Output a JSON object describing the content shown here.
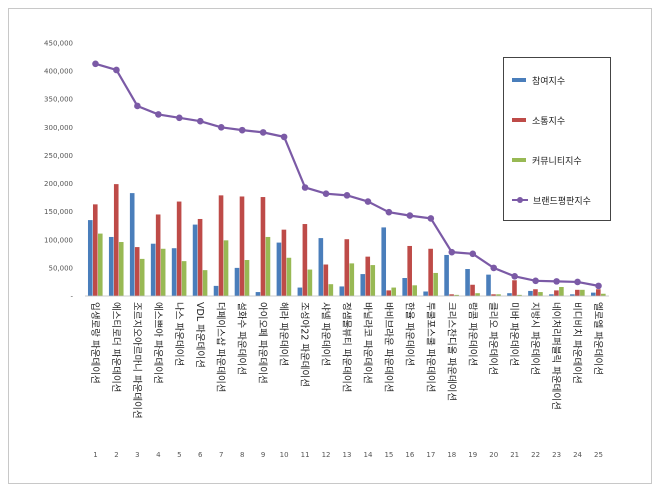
{
  "chart_data": {
    "type": "bar",
    "title": "",
    "xlabel": "",
    "ylabel": "",
    "ylim": [
      0,
      450000
    ],
    "yticks": [
      "-",
      "50,000",
      "100,000",
      "150,000",
      "200,000",
      "250,000",
      "300,000",
      "350,000",
      "400,000",
      "450,000"
    ],
    "categories": [
      "입생로랑 파운데이션",
      "에스티로더 파운데이션",
      "조르지오아르마니 파운데이션",
      "에스쁘아 파운데이션",
      "나스 파운데이션",
      "VDL 파운데이션",
      "더페이스샵 파운데이션",
      "설화수 파운데이션",
      "아이오페 파운데이션",
      "헤라 파운데이션",
      "조성아22 파운데이션",
      "샤넬 파운데이션",
      "정샘물뷰티 파운데이션",
      "바닐라코 파운데이션",
      "바비브라운 파운데이션",
      "한율 파운데이션",
      "투쿨포스쿨 파운데이션",
      "크리스찬디올 파운데이션",
      "랑콤 파운데이션",
      "클리오 파운데이션",
      "미바 파운데이션",
      "지방시 파운데이션",
      "네이처리퍼블릭 파운데이션",
      "비디비치 파운데이션",
      "엘로엘 파운데이션"
    ],
    "ranks": [
      "1",
      "2",
      "3",
      "4",
      "5",
      "6",
      "7",
      "8",
      "9",
      "10",
      "11",
      "12",
      "13",
      "14",
      "15",
      "16",
      "17",
      "18",
      "19",
      "20",
      "21",
      "22",
      "23",
      "24",
      "25"
    ],
    "series": [
      {
        "name": "참여지수",
        "type": "bar",
        "color": "#4a7ebb",
        "values": [
          135000,
          105000,
          183000,
          93000,
          85000,
          127000,
          18000,
          50000,
          7000,
          95000,
          15000,
          103000,
          17000,
          39000,
          122000,
          32000,
          8000,
          73000,
          48000,
          38000,
          5000,
          9000,
          3000,
          3000,
          6000
        ]
      },
      {
        "name": "소통지수",
        "type": "bar",
        "color": "#be4b48",
        "values": [
          163000,
          199000,
          87000,
          145000,
          168000,
          137000,
          179000,
          177000,
          176000,
          118000,
          128000,
          56000,
          101000,
          70000,
          10000,
          89000,
          84000,
          3000,
          20000,
          3000,
          28000,
          12000,
          10000,
          11000,
          12000
        ]
      },
      {
        "name": "커뮤니티지수",
        "type": "bar",
        "color": "#98b954",
        "values": [
          111000,
          96000,
          66000,
          84000,
          62000,
          46000,
          99000,
          64000,
          105000,
          68000,
          47000,
          21000,
          58000,
          55000,
          15000,
          19000,
          41000,
          2000,
          5000,
          3000,
          2000,
          7000,
          16000,
          11000,
          4000
        ]
      },
      {
        "name": "브랜드평판지수",
        "type": "line",
        "color": "#7b5aa6",
        "values": [
          413000,
          402000,
          338000,
          323000,
          317000,
          311000,
          300000,
          295000,
          291000,
          283000,
          193000,
          182000,
          179000,
          168000,
          149000,
          143000,
          138000,
          78000,
          75000,
          50000,
          35000,
          27000,
          26000,
          25000,
          18000
        ]
      }
    ],
    "legend_position": "right",
    "grid": false
  }
}
